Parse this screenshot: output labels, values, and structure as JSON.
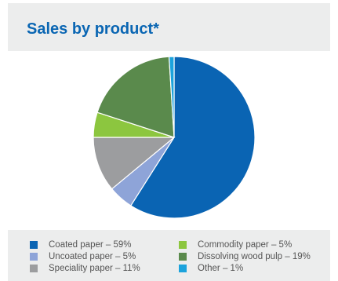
{
  "title": "Sales by product*",
  "colors": {
    "coated": "#0a64b3",
    "uncoated": "#8ea4d8",
    "speciality": "#9c9d9f",
    "commodity": "#8cc63f",
    "dissolving": "#5a8a4c",
    "other": "#1ca3dc"
  },
  "chart_data": {
    "type": "pie",
    "title": "Sales by product*",
    "slices": [
      {
        "label": "Coated paper – 59%",
        "value": 59,
        "color": "#0a64b3"
      },
      {
        "label": "Uncoated paper – 5%",
        "value": 5,
        "color": "#8ea4d8"
      },
      {
        "label": "Speciality paper – 11%",
        "value": 11,
        "color": "#9c9d9f"
      },
      {
        "label": "Commodity paper – 5%",
        "value": 5,
        "color": "#8cc63f"
      },
      {
        "label": "Dissolving wood pulp – 19%",
        "value": 19,
        "color": "#5a8a4c"
      },
      {
        "label": "Other – 1%",
        "value": 1,
        "color": "#1ca3dc"
      }
    ],
    "legend_position": "bottom"
  }
}
